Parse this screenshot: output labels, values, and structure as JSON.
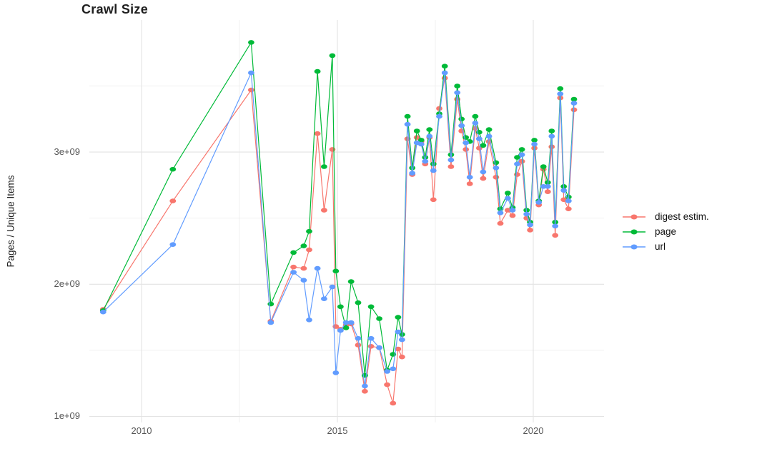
{
  "title": "Crawl Size",
  "axes": {
    "y_label": "Pages / Unique Items",
    "y_ticks": [
      {
        "label": "3e+09",
        "value": 3000000000.0
      },
      {
        "label": "2e+09",
        "value": 2000000000.0
      },
      {
        "label": "1e+09",
        "value": 1000000000.0
      }
    ],
    "x_ticks": [
      {
        "label": "2010",
        "value": 2010
      },
      {
        "label": "2015",
        "value": 2015
      },
      {
        "label": "2020",
        "value": 2020
      }
    ],
    "y_minor": [
      1500000000.0,
      2500000000.0,
      3500000000.0
    ],
    "x_minor": [
      2012.5,
      2017.5
    ]
  },
  "legend": {
    "items": [
      {
        "label": "digest estim.",
        "color": "#F8766D"
      },
      {
        "label": "page",
        "color": "#00BA38"
      },
      {
        "label": "url",
        "color": "#619CFF"
      }
    ]
  },
  "colors": {
    "grid_major": "#E3E3E3",
    "grid_minor": "#EFEFEF",
    "tick_text": "#555555"
  },
  "chart_data": {
    "type": "line",
    "title": "Crawl Size",
    "xlabel": "",
    "ylabel": "Pages / Unique Items",
    "legend_position": "right",
    "grid": true,
    "xlim": [
      2008.67,
      2021.8
    ],
    "ylim": [
      950000000.0,
      4000000000.0
    ],
    "x": [
      2009.02,
      2010.8,
      2012.8,
      2013.3,
      2013.88,
      2014.14,
      2014.28,
      2014.49,
      2014.66,
      2014.87,
      2014.96,
      2015.08,
      2015.22,
      2015.35,
      2015.53,
      2015.7,
      2015.86,
      2016.07,
      2016.27,
      2016.42,
      2016.55,
      2016.65,
      2016.79,
      2016.91,
      2017.03,
      2017.14,
      2017.24,
      2017.35,
      2017.45,
      2017.6,
      2017.74,
      2017.9,
      2018.06,
      2018.17,
      2018.28,
      2018.38,
      2018.52,
      2018.62,
      2018.72,
      2018.87,
      2019.05,
      2019.16,
      2019.35,
      2019.47,
      2019.59,
      2019.71,
      2019.83,
      2019.92,
      2020.03,
      2020.14,
      2020.26,
      2020.37,
      2020.47,
      2020.56,
      2020.69,
      2020.78,
      2020.9,
      2021.04
    ],
    "series": [
      {
        "name": "digest estim.",
        "color": "#F8766D",
        "values": [
          1810000000.0,
          2630000000.0,
          3470000000.0,
          1720000000.0,
          2130000000.0,
          2120000000.0,
          2260000000.0,
          3140000000.0,
          2560000000.0,
          3020000000.0,
          1680000000.0,
          1660000000.0,
          1690000000.0,
          1700000000.0,
          1540000000.0,
          1190000000.0,
          1530000000.0,
          1520000000.0,
          1240000000.0,
          1100000000.0,
          1510000000.0,
          1450000000.0,
          3100000000.0,
          2830000000.0,
          3110000000.0,
          3080000000.0,
          2910000000.0,
          3110000000.0,
          2640000000.0,
          3330000000.0,
          3560000000.0,
          2890000000.0,
          3400000000.0,
          3160000000.0,
          3020000000.0,
          2760000000.0,
          3180000000.0,
          3030000000.0,
          2800000000.0,
          3080000000.0,
          2810000000.0,
          2460000000.0,
          2560000000.0,
          2520000000.0,
          2830000000.0,
          2930000000.0,
          2500000000.0,
          2410000000.0,
          3030000000.0,
          2600000000.0,
          2870000000.0,
          2700000000.0,
          3040000000.0,
          2370000000.0,
          3410000000.0,
          2640000000.0,
          2570000000.0,
          3320000000.0
        ]
      },
      {
        "name": "page",
        "color": "#00BA38",
        "values": [
          1800000000.0,
          2870000000.0,
          3830000000.0,
          1850000000.0,
          2240000000.0,
          2290000000.0,
          2400000000.0,
          3610000000.0,
          2890000000.0,
          3730000000.0,
          2100000000.0,
          1830000000.0,
          1670000000.0,
          2020000000.0,
          1860000000.0,
          1310000000.0,
          1830000000.0,
          1740000000.0,
          1350000000.0,
          1470000000.0,
          1750000000.0,
          1620000000.0,
          3270000000.0,
          2880000000.0,
          3160000000.0,
          3090000000.0,
          2960000000.0,
          3170000000.0,
          2910000000.0,
          3290000000.0,
          3650000000.0,
          2980000000.0,
          3500000000.0,
          3250000000.0,
          3110000000.0,
          3080000000.0,
          3270000000.0,
          3150000000.0,
          3050000000.0,
          3170000000.0,
          2920000000.0,
          2570000000.0,
          2690000000.0,
          2580000000.0,
          2960000000.0,
          3020000000.0,
          2560000000.0,
          2470000000.0,
          3090000000.0,
          2630000000.0,
          2890000000.0,
          2770000000.0,
          3160000000.0,
          2470000000.0,
          3480000000.0,
          2740000000.0,
          2660000000.0,
          3400000000.0
        ]
      },
      {
        "name": "url",
        "color": "#619CFF",
        "values": [
          1790000000.0,
          2300000000.0,
          3600000000.0,
          1710000000.0,
          2090000000.0,
          2030000000.0,
          1730000000.0,
          2120000000.0,
          1890000000.0,
          1980000000.0,
          1330000000.0,
          1650000000.0,
          1710000000.0,
          1710000000.0,
          1590000000.0,
          1230000000.0,
          1590000000.0,
          1520000000.0,
          1340000000.0,
          1360000000.0,
          1640000000.0,
          1580000000.0,
          3210000000.0,
          2840000000.0,
          3070000000.0,
          3060000000.0,
          2930000000.0,
          3120000000.0,
          2860000000.0,
          3270000000.0,
          3600000000.0,
          2940000000.0,
          3450000000.0,
          3200000000.0,
          3070000000.0,
          2810000000.0,
          3220000000.0,
          3100000000.0,
          2850000000.0,
          3120000000.0,
          2880000000.0,
          2540000000.0,
          2650000000.0,
          2560000000.0,
          2910000000.0,
          2980000000.0,
          2530000000.0,
          2450000000.0,
          3060000000.0,
          2620000000.0,
          2740000000.0,
          2740000000.0,
          3120000000.0,
          2440000000.0,
          3440000000.0,
          2710000000.0,
          2630000000.0,
          3370000000.0
        ]
      }
    ]
  }
}
